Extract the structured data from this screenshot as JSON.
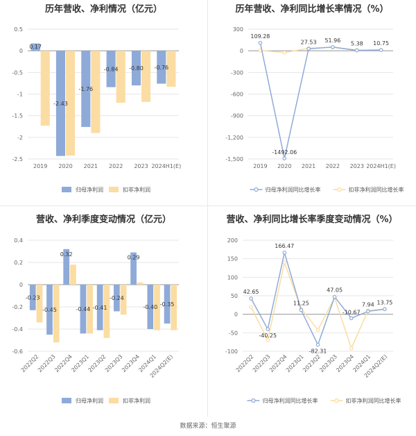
{
  "source": "数据来源：恒生聚源",
  "chart_data": [
    {
      "type": "bar",
      "title": "历年营收、净利情况（亿元）",
      "categories": [
        "2019",
        "2020",
        "2021",
        "2022",
        "2023",
        "2024H1(E)"
      ],
      "series": [
        {
          "name": "归母净利润",
          "values": [
            0.17,
            -2.43,
            -1.76,
            -0.84,
            -0.8,
            -0.76
          ],
          "color": "#8eaad8"
        },
        {
          "name": "扣非净利润",
          "values": [
            -1.73,
            -2.42,
            -1.9,
            -1.2,
            -1.18,
            -0.83
          ],
          "color": "#fbdca2"
        }
      ],
      "labels": [
        "0.17",
        "-2.43",
        "-1.76",
        "-0.84",
        "-0.80",
        "-0.76"
      ],
      "ylim": [
        -2.5,
        0.5
      ],
      "yticks": [
        "0.5",
        "0",
        "-0.5",
        "-1",
        "-1.5",
        "-2",
        "-2.5"
      ],
      "grid": true,
      "legend": "bottom"
    },
    {
      "type": "line",
      "title": "历年营收、净利同比增长率情况（%）",
      "categories": [
        "2019",
        "2020",
        "2021",
        "2022",
        "2023",
        "2024H1(E)"
      ],
      "series": [
        {
          "name": "归母净利润同比增长率",
          "values": [
            109.28,
            -1492.06,
            27.53,
            51.96,
            5.38,
            10.75
          ],
          "color": "#8eaad8"
        },
        {
          "name": "扣非净利润同比增长率",
          "values": [
            5,
            -25,
            35,
            48,
            10,
            12
          ],
          "color": "#fbdca2"
        }
      ],
      "labels": [
        "109.28",
        "-1492.06",
        "27.53",
        "51.96",
        "5.38",
        "10.75"
      ],
      "ylim": [
        -1500,
        300
      ],
      "yticks": [
        "300",
        "0",
        "-300",
        "-600",
        "-900",
        "-1,200",
        "-1,500"
      ],
      "grid": true,
      "legend": "bottom"
    },
    {
      "type": "bar",
      "title": "营收、净利季度变动情况（亿元）",
      "categories": [
        "2022Q2",
        "2022Q3",
        "2022Q4",
        "2023Q1",
        "2023Q2",
        "2023Q3",
        "2023Q4",
        "2024Q1",
        "2024Q2(E)"
      ],
      "series": [
        {
          "name": "归母净利润",
          "values": [
            -0.23,
            -0.45,
            0.32,
            -0.44,
            -0.41,
            -0.24,
            0.29,
            -0.4,
            -0.35
          ],
          "color": "#8eaad8"
        },
        {
          "name": "扣非净利润",
          "values": [
            -0.34,
            -0.52,
            0.18,
            -0.44,
            -0.48,
            -0.27,
            0.02,
            -0.41,
            -0.41
          ],
          "color": "#fbdca2"
        }
      ],
      "labels": [
        "-0.23",
        "-0.45",
        "0.32",
        "-0.44",
        "-0.41",
        "-0.24",
        "0.29",
        "-0.40",
        "-0.35"
      ],
      "ylim": [
        -0.6,
        0.4
      ],
      "yticks": [
        "0.4",
        "0.2",
        "0",
        "-0.2",
        "-0.4",
        "-0.6"
      ],
      "grid": true,
      "legend": "bottom"
    },
    {
      "type": "line",
      "title": "营收、净利同比增长率季度变动情况（%）",
      "categories": [
        "2022Q2",
        "2022Q3",
        "2022Q4",
        "2023Q1",
        "2023Q2",
        "2023Q3",
        "2023Q4",
        "2024Q1",
        "2024Q2(E)"
      ],
      "series": [
        {
          "name": "归母净利润同比增长率",
          "values": [
            42.65,
            -40.25,
            166.47,
            11.25,
            -82.31,
            47.05,
            -10.67,
            7.94,
            13.75
          ],
          "color": "#8eaad8"
        },
        {
          "name": "扣非净利润同比增长率",
          "values": [
            20,
            -70,
            140,
            15,
            -42,
            45,
            -92,
            10,
            14
          ],
          "color": "#fbdca2"
        }
      ],
      "labels": [
        "42.65",
        "-40.25",
        "166.47",
        "11.25",
        "-82.31",
        "47.05",
        "-10.67",
        "7.94",
        "13.75"
      ],
      "ylim": [
        -100,
        200
      ],
      "yticks": [
        "200",
        "150",
        "100",
        "50",
        "0",
        "-50",
        "-100"
      ],
      "grid": true,
      "legend": "bottom"
    }
  ]
}
